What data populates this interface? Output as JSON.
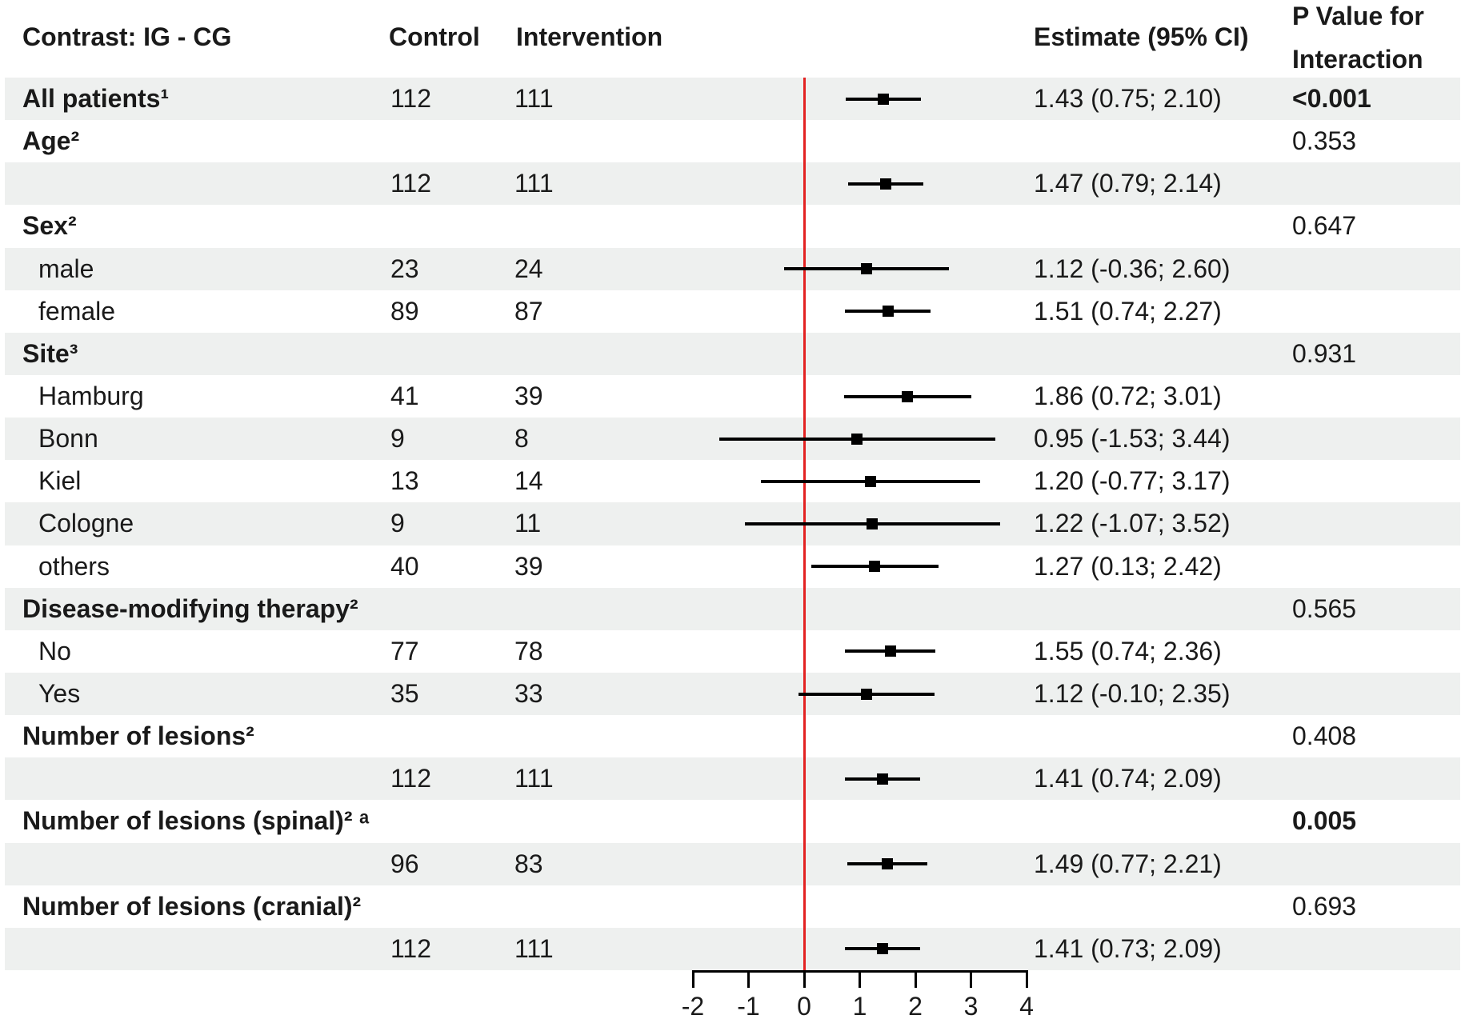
{
  "header": {
    "contrast": "Contrast: IG - CG",
    "control": "Control",
    "intervention": "Intervention",
    "estimate": "Estimate (95% CI)",
    "p_value_line1": "P Value for",
    "p_value_line2": "Interaction"
  },
  "colors": {
    "row_shade": "#eef0ef",
    "reference_line": "#e32222",
    "marker": "#000000",
    "text": "#1a1a1a"
  },
  "axis": {
    "tick_labels": [
      "-2",
      "-1",
      "0",
      "1",
      "2",
      "3",
      "4"
    ],
    "tick_values": [
      -2,
      -1,
      0,
      1,
      2,
      3,
      4
    ],
    "min": -2,
    "max": 4,
    "reference_value": 0
  },
  "rows": [
    {
      "label": "All patients¹",
      "bold": true,
      "control": "112",
      "intervention": "111",
      "est": 1.43,
      "lo": 0.75,
      "hi": 2.1,
      "estimate_text": "1.43 (0.75; 2.10)",
      "p": "<0.001",
      "p_bold": true
    },
    {
      "label": "Age²",
      "bold": true,
      "p": "0.353"
    },
    {
      "control": "112",
      "intervention": "111",
      "est": 1.47,
      "lo": 0.79,
      "hi": 2.14,
      "estimate_text": "1.47 (0.79; 2.14)"
    },
    {
      "label": "Sex²",
      "bold": true,
      "p": "0.647"
    },
    {
      "label": "male",
      "indent": true,
      "control": "23",
      "intervention": "24",
      "est": 1.12,
      "lo": -0.36,
      "hi": 2.6,
      "estimate_text": "1.12 (-0.36; 2.60)"
    },
    {
      "label": "female",
      "indent": true,
      "control": "89",
      "intervention": "87",
      "est": 1.51,
      "lo": 0.74,
      "hi": 2.27,
      "estimate_text": "1.51 (0.74; 2.27)"
    },
    {
      "label": "Site³",
      "bold": true,
      "p": "0.931"
    },
    {
      "label": "Hamburg",
      "indent": true,
      "control": "41",
      "intervention": "39",
      "est": 1.86,
      "lo": 0.72,
      "hi": 3.01,
      "estimate_text": "1.86 (0.72; 3.01)"
    },
    {
      "label": "Bonn",
      "indent": true,
      "control": "9",
      "intervention": "8",
      "est": 0.95,
      "lo": -1.53,
      "hi": 3.44,
      "estimate_text": "0.95 (-1.53; 3.44)"
    },
    {
      "label": "Kiel",
      "indent": true,
      "control": "13",
      "intervention": "14",
      "est": 1.2,
      "lo": -0.77,
      "hi": 3.17,
      "estimate_text": "1.20 (-0.77; 3.17)"
    },
    {
      "label": "Cologne",
      "indent": true,
      "control": "9",
      "intervention": "11",
      "est": 1.22,
      "lo": -1.07,
      "hi": 3.52,
      "estimate_text": "1.22 (-1.07; 3.52)"
    },
    {
      "label": "others",
      "indent": true,
      "control": "40",
      "intervention": "39",
      "est": 1.27,
      "lo": 0.13,
      "hi": 2.42,
      "estimate_text": "1.27 (0.13; 2.42)"
    },
    {
      "label": "Disease-modifying therapy²",
      "bold": true,
      "p": "0.565"
    },
    {
      "label": "No",
      "indent": true,
      "control": "77",
      "intervention": "78",
      "est": 1.55,
      "lo": 0.74,
      "hi": 2.36,
      "estimate_text": "1.55 (0.74; 2.36)"
    },
    {
      "label": "Yes",
      "indent": true,
      "control": "35",
      "intervention": "33",
      "est": 1.12,
      "lo": -0.1,
      "hi": 2.35,
      "estimate_text": "1.12 (-0.10; 2.35)"
    },
    {
      "label": "Number of lesions²",
      "bold": true,
      "p": "0.408"
    },
    {
      "control": "112",
      "intervention": "111",
      "est": 1.41,
      "lo": 0.74,
      "hi": 2.09,
      "estimate_text": "1.41 (0.74; 2.09)"
    },
    {
      "label": "Number of lesions (spinal)² ᵃ",
      "bold": true,
      "p": "0.005",
      "p_bold": true
    },
    {
      "control": "96",
      "intervention": "83",
      "est": 1.49,
      "lo": 0.77,
      "hi": 2.21,
      "estimate_text": "1.49 (0.77; 2.21)"
    },
    {
      "label": "Number of lesions (cranial)²",
      "bold": true,
      "p": "0.693"
    },
    {
      "control": "112",
      "intervention": "111",
      "est": 1.41,
      "lo": 0.73,
      "hi": 2.09,
      "estimate_text": "1.41 (0.73; 2.09)"
    }
  ],
  "chart_data": {
    "type": "forest",
    "title": "",
    "xlabel": "",
    "columns": [
      "Contrast: IG - CG",
      "Control",
      "Intervention",
      "Estimate (95% CI)",
      "P Value for Interaction"
    ],
    "x_axis": {
      "min": -2,
      "max": 4,
      "ticks": [
        -2,
        -1,
        0,
        1,
        2,
        3,
        4
      ],
      "reference_line": 0
    },
    "entries": [
      {
        "group": "All patients¹",
        "p_interaction": "<0.001",
        "rows": [
          {
            "label": "",
            "control_n": 112,
            "intervention_n": 111,
            "estimate": 1.43,
            "ci": [
              0.75,
              2.1
            ]
          }
        ]
      },
      {
        "group": "Age²",
        "p_interaction": "0.353",
        "rows": [
          {
            "label": "",
            "control_n": 112,
            "intervention_n": 111,
            "estimate": 1.47,
            "ci": [
              0.79,
              2.14
            ]
          }
        ]
      },
      {
        "group": "Sex²",
        "p_interaction": "0.647",
        "rows": [
          {
            "label": "male",
            "control_n": 23,
            "intervention_n": 24,
            "estimate": 1.12,
            "ci": [
              -0.36,
              2.6
            ]
          },
          {
            "label": "female",
            "control_n": 89,
            "intervention_n": 87,
            "estimate": 1.51,
            "ci": [
              0.74,
              2.27
            ]
          }
        ]
      },
      {
        "group": "Site³",
        "p_interaction": "0.931",
        "rows": [
          {
            "label": "Hamburg",
            "control_n": 41,
            "intervention_n": 39,
            "estimate": 1.86,
            "ci": [
              0.72,
              3.01
            ]
          },
          {
            "label": "Bonn",
            "control_n": 9,
            "intervention_n": 8,
            "estimate": 0.95,
            "ci": [
              -1.53,
              3.44
            ]
          },
          {
            "label": "Kiel",
            "control_n": 13,
            "intervention_n": 14,
            "estimate": 1.2,
            "ci": [
              -0.77,
              3.17
            ]
          },
          {
            "label": "Cologne",
            "control_n": 9,
            "intervention_n": 11,
            "estimate": 1.22,
            "ci": [
              -1.07,
              3.52
            ]
          },
          {
            "label": "others",
            "control_n": 40,
            "intervention_n": 39,
            "estimate": 1.27,
            "ci": [
              0.13,
              2.42
            ]
          }
        ]
      },
      {
        "group": "Disease-modifying therapy²",
        "p_interaction": "0.565",
        "rows": [
          {
            "label": "No",
            "control_n": 77,
            "intervention_n": 78,
            "estimate": 1.55,
            "ci": [
              0.74,
              2.36
            ]
          },
          {
            "label": "Yes",
            "control_n": 35,
            "intervention_n": 33,
            "estimate": 1.12,
            "ci": [
              -0.1,
              2.35
            ]
          }
        ]
      },
      {
        "group": "Number of lesions²",
        "p_interaction": "0.408",
        "rows": [
          {
            "label": "",
            "control_n": 112,
            "intervention_n": 111,
            "estimate": 1.41,
            "ci": [
              0.74,
              2.09
            ]
          }
        ]
      },
      {
        "group": "Number of lesions (spinal)² ᵃ",
        "p_interaction": "0.005",
        "rows": [
          {
            "label": "",
            "control_n": 96,
            "intervention_n": 83,
            "estimate": 1.49,
            "ci": [
              0.77,
              2.21
            ]
          }
        ]
      },
      {
        "group": "Number of lesions (cranial)²",
        "p_interaction": "0.693",
        "rows": [
          {
            "label": "",
            "control_n": 112,
            "intervention_n": 111,
            "estimate": 1.41,
            "ci": [
              0.73,
              2.09
            ]
          }
        ]
      }
    ]
  }
}
